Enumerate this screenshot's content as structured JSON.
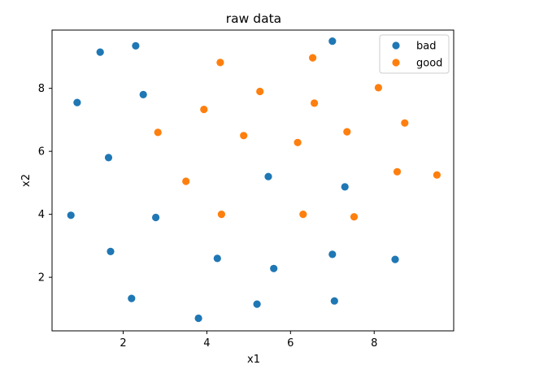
{
  "chart_data": {
    "type": "scatter",
    "title": "raw data",
    "xlabel": "x1",
    "ylabel": "x2",
    "xlim": [
      0.3,
      9.9
    ],
    "ylim": [
      0.3,
      9.85
    ],
    "xticks": [
      2,
      4,
      6,
      8
    ],
    "yticks": [
      2,
      4,
      6,
      8
    ],
    "grid": false,
    "legend": "top-right",
    "series": [
      {
        "name": "bad",
        "color": "#1f77b4",
        "points": [
          [
            0.9,
            7.55
          ],
          [
            1.45,
            9.15
          ],
          [
            2.3,
            9.35
          ],
          [
            2.48,
            7.8
          ],
          [
            1.65,
            5.8
          ],
          [
            0.75,
            3.97
          ],
          [
            2.78,
            3.9
          ],
          [
            1.7,
            2.82
          ],
          [
            2.2,
            1.33
          ],
          [
            3.8,
            0.7
          ],
          [
            4.25,
            2.6
          ],
          [
            5.2,
            1.15
          ],
          [
            5.6,
            2.28
          ],
          [
            5.47,
            5.2
          ],
          [
            7.0,
            9.5
          ],
          [
            7.3,
            4.87
          ],
          [
            7.0,
            2.73
          ],
          [
            7.05,
            1.25
          ],
          [
            8.5,
            2.57
          ]
        ]
      },
      {
        "name": "good",
        "color": "#ff7f0e",
        "points": [
          [
            4.32,
            8.82
          ],
          [
            6.53,
            8.97
          ],
          [
            5.27,
            7.9
          ],
          [
            3.93,
            7.33
          ],
          [
            6.57,
            7.53
          ],
          [
            8.1,
            8.02
          ],
          [
            2.83,
            6.6
          ],
          [
            4.88,
            6.5
          ],
          [
            6.17,
            6.28
          ],
          [
            7.35,
            6.62
          ],
          [
            8.73,
            6.9
          ],
          [
            3.5,
            5.05
          ],
          [
            8.55,
            5.35
          ],
          [
            9.5,
            5.25
          ],
          [
            4.35,
            4.0
          ],
          [
            6.3,
            4.0
          ],
          [
            7.52,
            3.92
          ]
        ]
      }
    ]
  }
}
